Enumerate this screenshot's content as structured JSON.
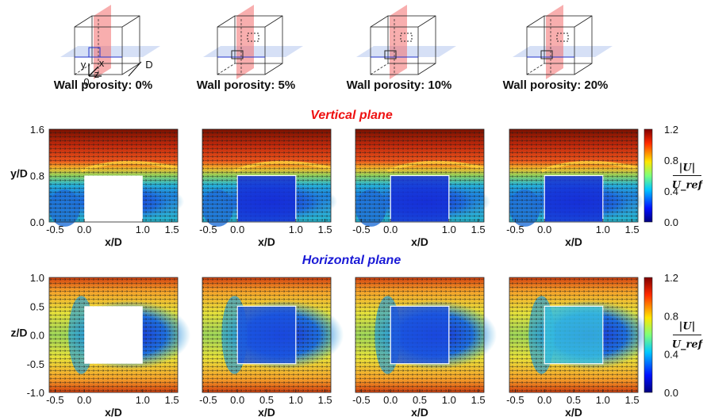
{
  "porosity_labels": [
    "Wall porosity: 0%",
    "Wall porosity: 5%",
    "Wall porosity: 10%",
    "Wall porosity: 20%"
  ],
  "schematic_axis_labels": {
    "y": "y",
    "x": "x",
    "z": "z",
    "origin": "0",
    "depth": "D"
  },
  "sections": {
    "vertical": {
      "title": "Vertical plane",
      "color": "#ee1111"
    },
    "horizontal": {
      "title": "Horizontal plane",
      "color": "#1a1ad6"
    }
  },
  "colors": {
    "porous_cube_edge": "#ffffff",
    "solid_cube": "#ffffff",
    "plane_red": "#f26b6b",
    "plane_blue": "#8aa6e6"
  },
  "chart_data": [
    {
      "type": "heatmap",
      "title": "Vertical plane",
      "panels": [
        "Wall porosity: 0%",
        "Wall porosity: 5%",
        "Wall porosity: 10%",
        "Wall porosity: 20%"
      ],
      "xlabel": "x/D",
      "ylabel": "y/D",
      "xlim": [
        -0.6,
        1.6
      ],
      "ylim": [
        0.0,
        1.6
      ],
      "xticks": [
        "-0.5",
        "0.0",
        "1.0",
        "1.5"
      ],
      "yticks": [
        "0.0",
        "0.8",
        "1.6"
      ],
      "cube": {
        "x": [
          0.0,
          1.0
        ],
        "y": [
          0.0,
          0.8
        ]
      },
      "colorbar": {
        "label_num": "|U|",
        "label_den": "U_ref",
        "ticks": [
          "0.0",
          "0.4",
          "0.8",
          "1.2"
        ],
        "range": [
          0.0,
          1.2
        ]
      }
    },
    {
      "type": "heatmap",
      "title": "Horizontal plane",
      "panels": [
        "Wall porosity: 0%",
        "Wall porosity: 5%",
        "Wall porosity: 10%",
        "Wall porosity: 20%"
      ],
      "xlabel": "x/D",
      "ylabel": "z/D",
      "xlim": [
        -0.6,
        1.6
      ],
      "ylim": [
        -1.0,
        1.0
      ],
      "xticks": [
        "-0.5",
        "0.0",
        "0.5",
        "1.0",
        "1.5"
      ],
      "xticks_first_panel": [
        "-0.5",
        "0.0",
        "1.0",
        "1.5"
      ],
      "yticks": [
        "-1.0",
        "-0.5",
        "0.0",
        "0.5",
        "1.0"
      ],
      "cube": {
        "x": [
          0.0,
          1.0
        ],
        "z": [
          -0.5,
          0.5
        ]
      },
      "colorbar": {
        "label_num": "|U|",
        "label_den": "U_ref",
        "ticks": [
          "0.0",
          "0.4",
          "0.8",
          "1.2"
        ],
        "range": [
          0.0,
          1.2
        ]
      }
    }
  ]
}
